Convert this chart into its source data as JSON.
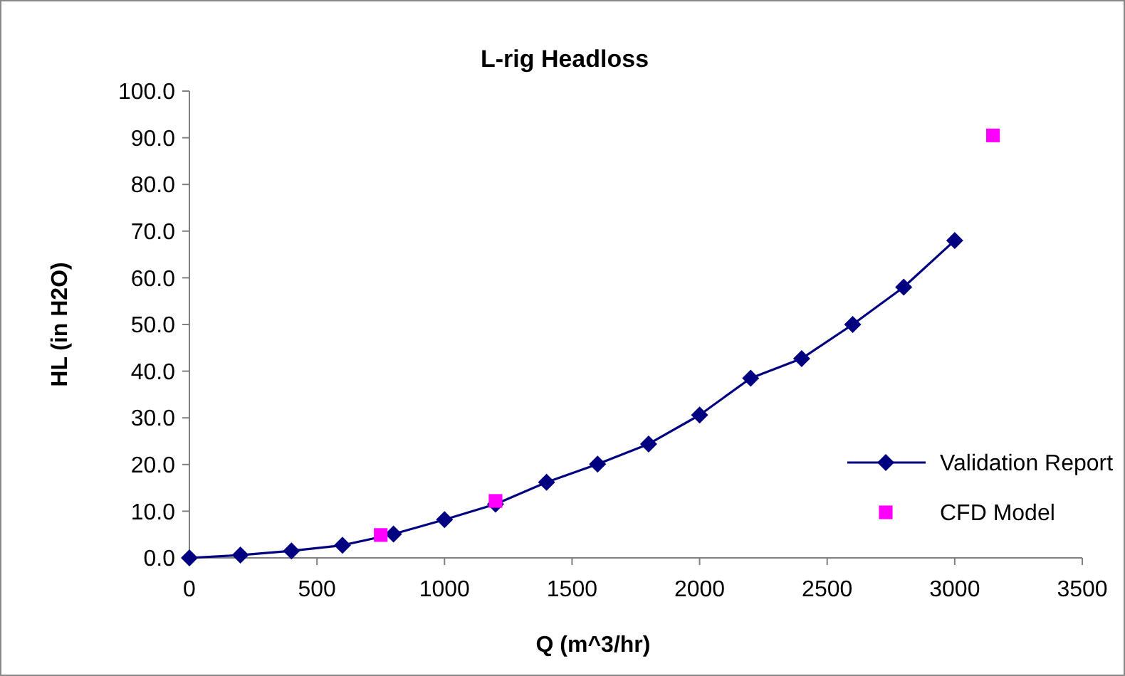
{
  "chart_data": {
    "type": "line",
    "title": "L-rig Headloss",
    "xlabel": "Q (m^3/hr)",
    "ylabel": "HL (in H2O)",
    "xlim": [
      0,
      3500
    ],
    "xticks": [
      0,
      500,
      1000,
      1500,
      2000,
      2500,
      3000,
      3500
    ],
    "ylim": [
      0,
      100
    ],
    "yticks": [
      {
        "value": 0,
        "label": "0.0"
      },
      {
        "value": 10,
        "label": "10.0"
      },
      {
        "value": 20,
        "label": "20.0"
      },
      {
        "value": 30,
        "label": "30.0"
      },
      {
        "value": 40,
        "label": "40.0"
      },
      {
        "value": 50,
        "label": "50.0"
      },
      {
        "value": 60,
        "label": "60.0"
      },
      {
        "value": 70,
        "label": "70.0"
      },
      {
        "value": 80,
        "label": "80.0"
      },
      {
        "value": 90,
        "label": "90.0"
      },
      {
        "value": 100,
        "label": "100.0"
      }
    ],
    "grid": false,
    "legend": "right",
    "series": [
      {
        "name": "Validation Report",
        "marker": "diamond",
        "color": "#000080",
        "x": [
          0,
          200,
          400,
          600,
          800,
          1000,
          1200,
          1400,
          1600,
          1800,
          2000,
          2200,
          2400,
          2600,
          2800,
          3000
        ],
        "values": [
          0,
          0.6,
          1.5,
          2.7,
          5.1,
          8.2,
          11.5,
          16.2,
          20.1,
          24.4,
          30.6,
          38.5,
          42.7,
          50.0,
          58.0,
          68.0
        ]
      },
      {
        "name": "CFD Model",
        "type": "scatter",
        "marker": "square",
        "color": "#ff00ff",
        "x": [
          750,
          1200,
          3150
        ],
        "values": [
          4.9,
          12.2,
          90.5
        ]
      }
    ]
  }
}
